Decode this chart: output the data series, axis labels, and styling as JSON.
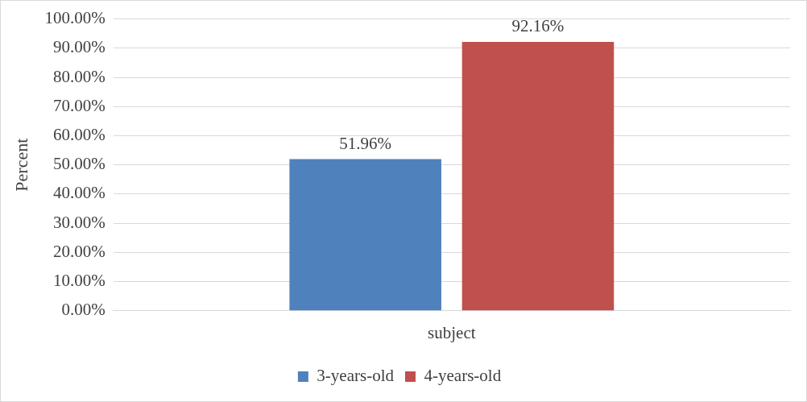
{
  "chart_data": {
    "type": "bar",
    "ylabel": "Percent",
    "categories": [
      "subject"
    ],
    "series": [
      {
        "name": "3-years-old",
        "color": "#4f81bd",
        "values": [
          51.96
        ],
        "value_labels": [
          "51.96%"
        ]
      },
      {
        "name": "4-years-old",
        "color": "#c0504d",
        "values": [
          92.16
        ],
        "value_labels": [
          "92.16%"
        ]
      }
    ],
    "ylim": [
      0,
      100
    ],
    "yticks": [
      {
        "value": 0,
        "label": "0.00%"
      },
      {
        "value": 10,
        "label": "10.00%"
      },
      {
        "value": 20,
        "label": "20.00%"
      },
      {
        "value": 30,
        "label": "30.00%"
      },
      {
        "value": 40,
        "label": "40.00%"
      },
      {
        "value": 50,
        "label": "50.00%"
      },
      {
        "value": 60,
        "label": "60.00%"
      },
      {
        "value": 70,
        "label": "70.00%"
      },
      {
        "value": 80,
        "label": "80.00%"
      },
      {
        "value": 90,
        "label": "90.00%"
      },
      {
        "value": 100,
        "label": "100.00%"
      }
    ],
    "grid": "y",
    "legend": "bottom"
  }
}
